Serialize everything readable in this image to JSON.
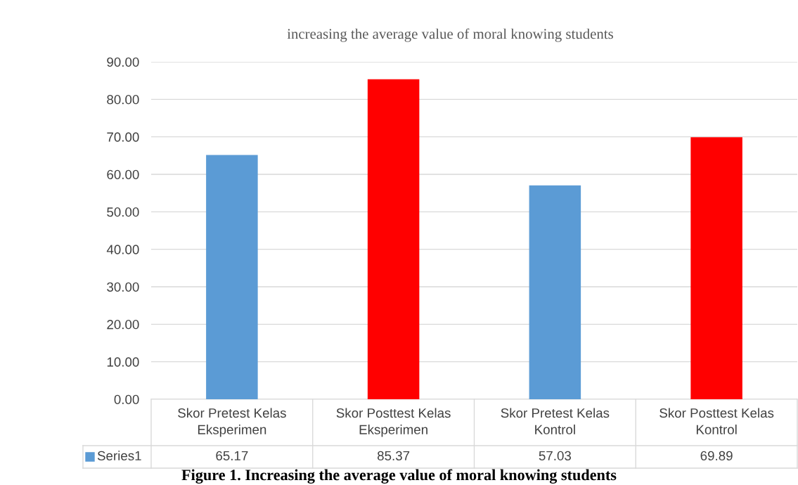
{
  "chart_data": {
    "type": "bar",
    "title": "increasing the average value of moral knowing students",
    "categories": [
      "Skor Pretest Kelas Eksperimen",
      "Skor Posttest Kelas Eksperimen",
      "Skor Pretest Kelas Kontrol",
      "Skor Posttest Kelas Kontrol"
    ],
    "series": [
      {
        "name": "Series1",
        "color": "#5b9bd5",
        "colors": [
          "#5b9bd5",
          "#ff0000",
          "#5b9bd5",
          "#ff0000"
        ],
        "values": [
          65.17,
          85.37,
          57.03,
          69.89
        ]
      }
    ],
    "ylim": [
      0,
      90
    ],
    "yticks": [
      {
        "value": 0,
        "label": "0.00"
      },
      {
        "value": 10,
        "label": "10.00"
      },
      {
        "value": 20,
        "label": "20.00"
      },
      {
        "value": 30,
        "label": "30.00"
      },
      {
        "value": 40,
        "label": "40.00"
      },
      {
        "value": 50,
        "label": "50.00"
      },
      {
        "value": 60,
        "label": "60.00"
      },
      {
        "value": 70,
        "label": "70.00"
      },
      {
        "value": 80,
        "label": "80.00"
      },
      {
        "value": 90,
        "label": "90.00"
      }
    ],
    "grid": "y",
    "data_labels": true,
    "legend": "bottom left",
    "annotations": [
      "Figure 1. Increasing the average value of moral knowing students"
    ]
  }
}
